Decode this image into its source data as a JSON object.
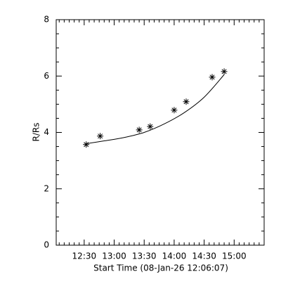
{
  "chart_data": {
    "type": "scatter",
    "xlabel": "Start Time (08-Jan-26 12:06:07)",
    "ylabel": "R/Rs",
    "xlim": [
      "12:02",
      "15:30"
    ],
    "xticks": [
      "12:30",
      "13:00",
      "13:30",
      "14:00",
      "14:30",
      "15:00"
    ],
    "ylim": [
      0,
      8
    ],
    "yticks": [
      0,
      2,
      4,
      6,
      8
    ],
    "x_minor_per_major": 6,
    "y_minor_per_major": 4,
    "series": [
      {
        "type": "scatter",
        "color": "#000000",
        "x": [
          "12:32",
          "12:46",
          "13:25",
          "13:36",
          "14:00",
          "14:12",
          "14:38",
          "14:50"
        ],
        "values": [
          3.57,
          3.87,
          4.09,
          4.21,
          4.79,
          5.09,
          5.96,
          6.16
        ]
      },
      {
        "type": "line",
        "color": "#000000",
        "x": [
          "12:32",
          "12:50",
          "13:10",
          "13:30",
          "13:50",
          "14:10",
          "14:30",
          "14:50"
        ],
        "values": [
          3.6,
          3.7,
          3.82,
          4.0,
          4.3,
          4.7,
          5.25,
          6.05
        ]
      }
    ]
  }
}
